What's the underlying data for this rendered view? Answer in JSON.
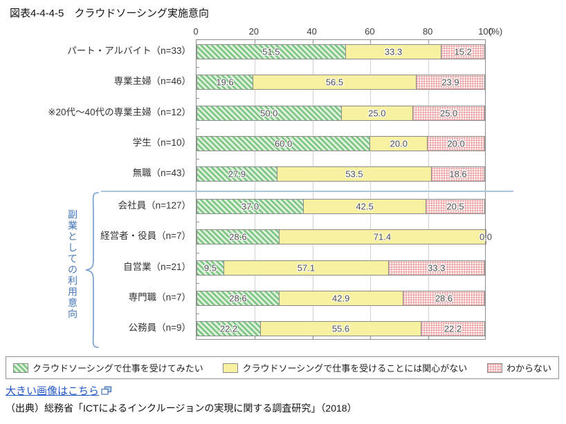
{
  "title": "図表4-4-4-5　クラウドソーシング実施意向",
  "chart_data": {
    "type": "bar",
    "orientation": "horizontal",
    "stacked": true,
    "title": "クラウドソーシング実施意向",
    "unit": "(%)",
    "xlim": [
      0,
      100
    ],
    "axis_ticks": [
      "0",
      "20",
      "40",
      "60",
      "80",
      "100"
    ],
    "grid": true,
    "legend_position": "bottom",
    "categories": [
      "パート・アルバイト（n=33）",
      "専業主婦（n=46）",
      "※20代～40代の専業主婦（n=12）",
      "学生（n=10）",
      "無職（n=43）",
      "会社員（n=127）",
      "経営者・役員（n=7）",
      "自営業（n=21）",
      "専門職（n=7）",
      "公務員（n=9）"
    ],
    "series": [
      {
        "name": "クラウドソーシングで仕事を受けてみたい",
        "style": "green-hatch",
        "values": [
          51.5,
          19.6,
          50.0,
          60.0,
          27.9,
          37.0,
          28.6,
          9.5,
          28.6,
          22.2
        ]
      },
      {
        "name": "クラウドソーシングで仕事を受けることには関心がない",
        "style": "yellow-solid",
        "values": [
          33.3,
          56.5,
          25.0,
          20.0,
          53.5,
          42.5,
          71.4,
          57.1,
          42.9,
          55.6
        ]
      },
      {
        "name": "わからない",
        "style": "red-dots",
        "values": [
          15.2,
          23.9,
          25.0,
          20.0,
          18.6,
          20.5,
          0.0,
          33.3,
          28.6,
          22.2
        ]
      }
    ],
    "group_annotation": {
      "label": "副業としての利用意向",
      "from_category_index": 5,
      "to_category_index": 9
    }
  },
  "colors": {
    "green_stripe": "#79c47f",
    "green_base": "#ddf0dc",
    "yellow": "#f9f1a2",
    "red_dot": "#df6c6c",
    "border_gray": "#8c8c8c",
    "annotation_blue": "#4576b8",
    "link_blue": "#2256c7"
  },
  "footer": {
    "link_label": "大きい画像はこちら",
    "source": "（出典）総務省「ICTによるインクルージョンの実現に関する調査研究」（2018）"
  }
}
